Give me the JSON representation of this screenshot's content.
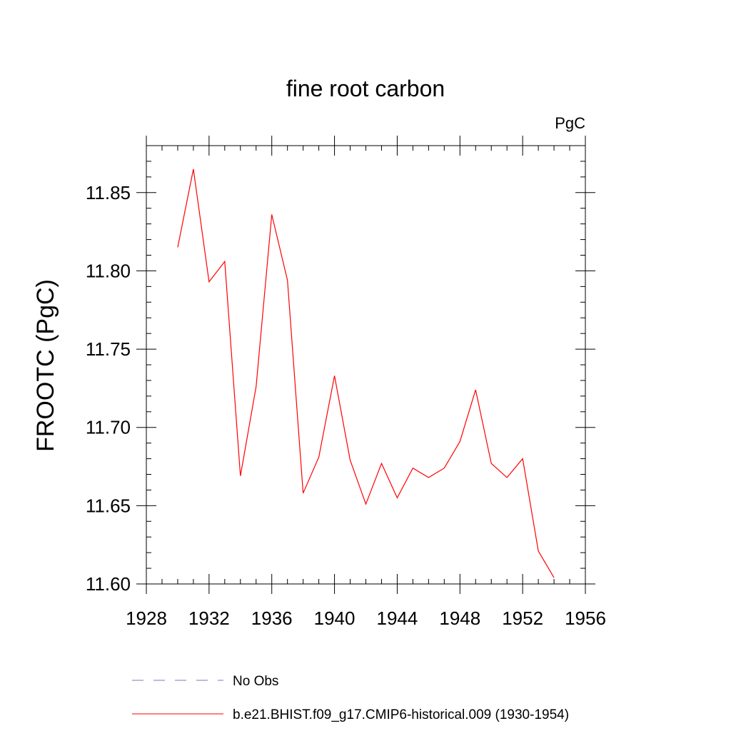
{
  "chart_data": {
    "type": "line",
    "title": "fine root carbon",
    "units_label": "PgC",
    "ylabel": "FROOTC  (PgC)",
    "xlabel": "",
    "xlim": [
      1928,
      1956
    ],
    "ylim": [
      11.6,
      11.88
    ],
    "x_ticks": [
      1928,
      1932,
      1936,
      1940,
      1944,
      1948,
      1952,
      1956
    ],
    "y_ticks": [
      11.6,
      11.65,
      11.7,
      11.75,
      11.8,
      11.85
    ],
    "y_tick_labels": [
      "11.60",
      "11.65",
      "11.70",
      "11.75",
      "11.80",
      "11.85"
    ],
    "grid": false,
    "legend_position": "bottom",
    "legend": [
      {
        "label": "No Obs",
        "color": "#7a7ab8",
        "style": "dashed"
      },
      {
        "label": "b.e21.BHIST.f09_g17.CMIP6-historical.009 (1930-1954)",
        "color": "#ff0000",
        "style": "solid"
      }
    ],
    "series": [
      {
        "color": "#ff0000",
        "x": [
          1930,
          1931,
          1932,
          1933,
          1934,
          1935,
          1936,
          1937,
          1938,
          1939,
          1940,
          1941,
          1942,
          1943,
          1944,
          1945,
          1946,
          1947,
          1948,
          1949,
          1950,
          1951,
          1952,
          1953,
          1954
        ],
        "values": [
          11.815,
          11.865,
          11.793,
          11.806,
          11.669,
          11.726,
          11.836,
          11.794,
          11.658,
          11.681,
          11.733,
          11.679,
          11.651,
          11.677,
          11.655,
          11.674,
          11.668,
          11.674,
          11.691,
          11.724,
          11.677,
          11.668,
          11.68,
          11.621,
          11.604
        ]
      }
    ]
  }
}
